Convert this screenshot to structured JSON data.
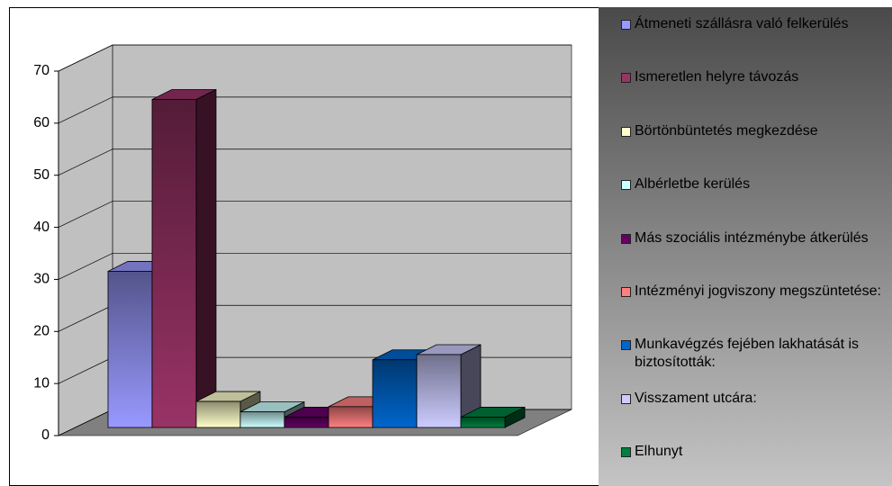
{
  "chart_data": {
    "type": "bar",
    "series": [
      {
        "name": "Átmeneti szállásra való felkerülés",
        "color": "#9999ff",
        "values": [
          30
        ]
      },
      {
        "name": "Ismeretlen helyre távozás",
        "color": "#993366",
        "values": [
          63
        ]
      },
      {
        "name": "Börtönbüntetés megkezdése",
        "color": "#ffffcc",
        "values": [
          5
        ]
      },
      {
        "name": "Albérletbe kerülés",
        "color": "#ccffff",
        "values": [
          3
        ]
      },
      {
        "name": "Más szociális intézménybe átkerülés",
        "color": "#660066",
        "values": [
          2
        ]
      },
      {
        "name": "Intézményi jogviszony megszüntetése:",
        "color": "#ff8080",
        "values": [
          4
        ]
      },
      {
        "name": "Munkavégzés fejében lakhatását is biztosították:",
        "color": "#0066cc",
        "values": [
          13
        ]
      },
      {
        "name": "Visszament utcára:",
        "color": "#ccccff",
        "values": [
          14
        ]
      },
      {
        "name": "Elhunyt",
        "color": "#008040",
        "values": [
          2
        ]
      }
    ],
    "ylim": [
      0,
      70
    ],
    "yticks": [
      0,
      10,
      20,
      30,
      40,
      50,
      60,
      70
    ],
    "grid": true,
    "legend": "right"
  }
}
